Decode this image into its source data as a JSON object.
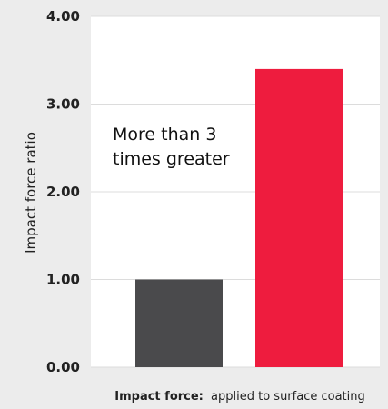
{
  "chart_data": {
    "type": "bar",
    "categories": [
      "",
      ""
    ],
    "values": [
      1.0,
      3.4
    ],
    "colors": [
      "#4a4a4c",
      "#ee1c3e"
    ],
    "ylim": [
      0,
      4
    ],
    "yticks": [
      "0.00",
      "1.00",
      "2.00",
      "3.00",
      "4.00"
    ],
    "ylabel": "Impact force ratio",
    "xlabel_bold": "Impact force:",
    "xlabel_rest": "applied to surface coating",
    "annotation_lines": [
      "More than 3",
      "times greater"
    ],
    "grid": true
  }
}
